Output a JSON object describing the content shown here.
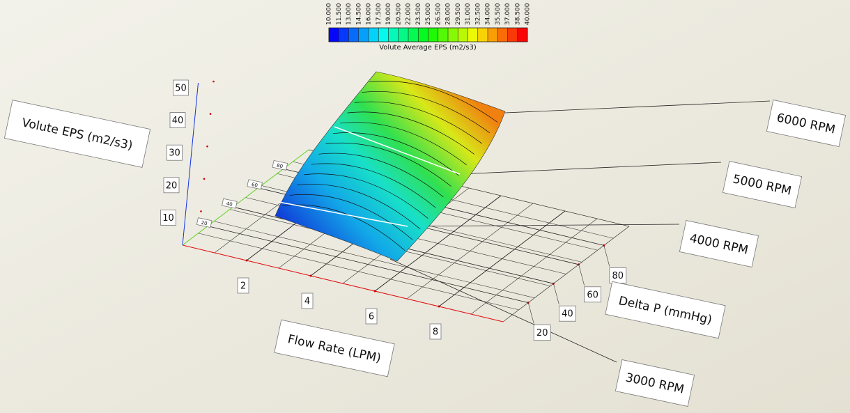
{
  "chart_data": {
    "type": "surface",
    "xlabel": "Flow Rate (LPM)",
    "ylabel": "Delta P (mmHg)",
    "zlabel": "Volute EPS (m2/s3)",
    "xlim": [
      0,
      10
    ],
    "xticks": [
      2,
      4,
      6,
      8
    ],
    "ylim": [
      0,
      100
    ],
    "yticks": [
      20,
      40,
      60,
      80
    ],
    "zlim": [
      0,
      50
    ],
    "zticks": [
      10,
      20,
      30,
      40,
      50
    ],
    "colorbar": {
      "label": "Volute Average EPS (m2/s3)",
      "lim": [
        10,
        40
      ],
      "ticks": [
        {
          "value": 10,
          "label": "10.000"
        },
        {
          "value": 11.5,
          "label": "11.500"
        },
        {
          "value": 13,
          "label": "13.000"
        },
        {
          "value": 14.5,
          "label": "14.500"
        },
        {
          "value": 16,
          "label": "16.000"
        },
        {
          "value": 17.5,
          "label": "17.500"
        },
        {
          "value": 19,
          "label": "19.000"
        },
        {
          "value": 20.5,
          "label": "20.500"
        },
        {
          "value": 22,
          "label": "22.000"
        },
        {
          "value": 23.5,
          "label": "23.500"
        },
        {
          "value": 25,
          "label": "25.000"
        },
        {
          "value": 26.5,
          "label": "26.500"
        },
        {
          "value": 28,
          "label": "28.000"
        },
        {
          "value": 29.5,
          "label": "29.500"
        },
        {
          "value": 31,
          "label": "31.000"
        },
        {
          "value": 32.5,
          "label": "32.500"
        },
        {
          "value": 34,
          "label": "34.000"
        },
        {
          "value": 35.5,
          "label": "35.500"
        },
        {
          "value": 37,
          "label": "37.000"
        },
        {
          "value": 38.5,
          "label": "38.500"
        },
        {
          "value": 40,
          "label": "40.000"
        }
      ]
    },
    "annotations": [
      "6000 RPM",
      "5000 RPM",
      "4000 RPM",
      "3000 RPM"
    ]
  }
}
